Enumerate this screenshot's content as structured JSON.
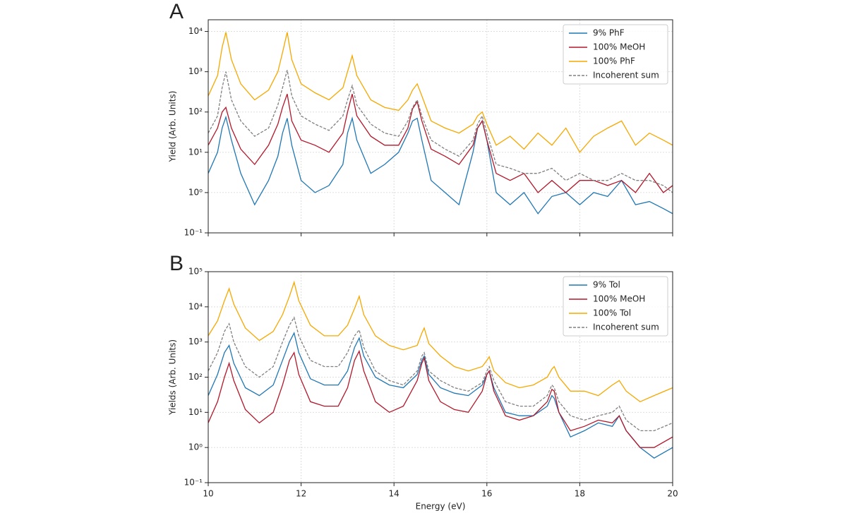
{
  "chart_data": [
    {
      "type": "line",
      "panel_label": "A",
      "ylabel": "Yield (Arb. Units)",
      "log_y": true,
      "grid": true,
      "legend": "upper right",
      "show_xtick_labels": false,
      "x": [
        10,
        10.2,
        10.3,
        10.38,
        10.5,
        10.7,
        11.0,
        11.3,
        11.5,
        11.6,
        11.7,
        11.8,
        12.0,
        12.3,
        12.6,
        12.9,
        13.0,
        13.1,
        13.2,
        13.5,
        13.8,
        14.1,
        14.3,
        14.4,
        14.5,
        14.6,
        14.8,
        15.1,
        15.4,
        15.7,
        15.8,
        15.9,
        16.0,
        16.2,
        16.5,
        16.8,
        17.1,
        17.4,
        17.7,
        18.0,
        18.3,
        18.6,
        18.9,
        19.2,
        19.5,
        19.8,
        20.0
      ],
      "xlim": [
        10,
        20
      ],
      "xticks": [
        10,
        12,
        14,
        16,
        18,
        20
      ],
      "ylim": [
        0.1,
        19500
      ],
      "yticks": [
        {
          "value": 0.1,
          "label": "10⁻¹"
        },
        {
          "value": 1,
          "label": "10⁰"
        },
        {
          "value": 10,
          "label": "10¹"
        },
        {
          "value": 100,
          "label": "10²"
        },
        {
          "value": 1000,
          "label": "10³"
        },
        {
          "value": 10000,
          "label": "10⁴"
        }
      ],
      "series": [
        {
          "name": "9% PhF",
          "color": "#1f77b4",
          "dashed": false,
          "values": [
            3,
            10,
            40,
            75,
            20,
            3,
            0.5,
            2,
            8,
            30,
            70,
            15,
            2,
            1,
            1.5,
            5,
            30,
            70,
            20,
            3,
            5,
            10,
            30,
            60,
            70,
            20,
            2,
            1,
            0.5,
            10,
            40,
            60,
            20,
            1,
            0.5,
            1,
            0.3,
            0.8,
            1,
            0.5,
            1,
            0.8,
            2,
            0.5,
            0.6,
            0.4,
            0.3
          ]
        },
        {
          "name": "100% MeOH",
          "color": "#b2182b",
          "dashed": false,
          "values": [
            15,
            40,
            100,
            130,
            40,
            12,
            5,
            15,
            50,
            130,
            280,
            60,
            20,
            15,
            10,
            30,
            100,
            280,
            80,
            25,
            15,
            15,
            40,
            120,
            180,
            60,
            12,
            8,
            5,
            15,
            40,
            60,
            20,
            3,
            2,
            3,
            1,
            2,
            1,
            2,
            2,
            1.5,
            2,
            1,
            3,
            1,
            1.5
          ]
        },
        {
          "name": "100% PhF",
          "color": "#f5a800",
          "dashed": false,
          "values": [
            250,
            800,
            4000,
            9500,
            2000,
            500,
            200,
            350,
            1000,
            3000,
            9500,
            2000,
            500,
            300,
            200,
            400,
            1000,
            2500,
            800,
            200,
            130,
            110,
            200,
            350,
            500,
            250,
            60,
            40,
            30,
            50,
            80,
            100,
            50,
            15,
            25,
            12,
            30,
            15,
            40,
            10,
            25,
            40,
            60,
            15,
            30,
            20,
            15
          ]
        },
        {
          "name": "Incoherent sum",
          "color": "#808080",
          "dashed": true,
          "values": [
            30,
            80,
            400,
            1000,
            200,
            60,
            25,
            40,
            150,
            400,
            1100,
            250,
            80,
            50,
            35,
            80,
            200,
            450,
            150,
            50,
            30,
            25,
            60,
            130,
            200,
            80,
            20,
            12,
            8,
            20,
            50,
            80,
            30,
            5,
            4,
            3,
            3,
            4,
            2,
            3,
            2,
            2,
            3,
            2,
            2,
            1.5,
            1
          ]
        }
      ]
    },
    {
      "type": "line",
      "panel_label": "B",
      "ylabel": "Yields (Arb. Units)",
      "xlabel": "Energy (eV)",
      "log_y": true,
      "grid": true,
      "legend": "upper right",
      "show_xtick_labels": true,
      "x": [
        10,
        10.2,
        10.35,
        10.45,
        10.55,
        10.8,
        11.1,
        11.4,
        11.6,
        11.75,
        11.85,
        11.95,
        12.2,
        12.5,
        12.8,
        13.0,
        13.15,
        13.25,
        13.35,
        13.6,
        13.9,
        14.2,
        14.5,
        14.6,
        14.65,
        14.75,
        15.0,
        15.3,
        15.6,
        15.9,
        16.0,
        16.05,
        16.15,
        16.4,
        16.7,
        17.0,
        17.3,
        17.4,
        17.45,
        17.55,
        17.8,
        18.1,
        18.4,
        18.7,
        18.85,
        19.0,
        19.3,
        19.6,
        20.0
      ],
      "xlim": [
        10,
        20
      ],
      "xticks": [
        10,
        12,
        14,
        16,
        18,
        20
      ],
      "ylim": [
        0.1,
        100000
      ],
      "yticks": [
        {
          "value": 0.1,
          "label": "10⁻¹"
        },
        {
          "value": 1,
          "label": "10⁰"
        },
        {
          "value": 10,
          "label": "10¹"
        },
        {
          "value": 100,
          "label": "10²"
        },
        {
          "value": 1000,
          "label": "10³"
        },
        {
          "value": 10000,
          "label": "10⁴"
        },
        {
          "value": 100000,
          "label": "10⁵"
        }
      ],
      "series": [
        {
          "name": "9% Tol",
          "color": "#1f77b4",
          "dashed": false,
          "values": [
            30,
            120,
            500,
            800,
            250,
            50,
            30,
            60,
            300,
            1000,
            1800,
            500,
            90,
            60,
            60,
            150,
            700,
            1300,
            400,
            100,
            60,
            50,
            120,
            300,
            400,
            120,
            50,
            35,
            30,
            60,
            120,
            150,
            50,
            10,
            8,
            8,
            15,
            30,
            25,
            10,
            2,
            3,
            5,
            4,
            8,
            3,
            1,
            0.5,
            1
          ]
        },
        {
          "name": "100% MeOH",
          "color": "#b2182b",
          "dashed": false,
          "values": [
            5,
            20,
            100,
            250,
            80,
            12,
            5,
            10,
            60,
            300,
            500,
            120,
            20,
            15,
            15,
            50,
            300,
            550,
            150,
            20,
            10,
            15,
            80,
            250,
            350,
            80,
            20,
            12,
            10,
            40,
            120,
            150,
            40,
            8,
            6,
            8,
            20,
            45,
            40,
            10,
            3,
            4,
            6,
            5,
            8,
            3,
            1,
            1,
            2
          ]
        },
        {
          "name": "100% Tol",
          "color": "#f5a800",
          "dashed": false,
          "values": [
            1500,
            4000,
            15000,
            33000,
            12000,
            2500,
            1100,
            2000,
            6000,
            20000,
            50000,
            15000,
            3000,
            1500,
            1500,
            3000,
            9000,
            20000,
            6000,
            1500,
            800,
            600,
            800,
            1800,
            2500,
            900,
            400,
            200,
            150,
            200,
            300,
            380,
            150,
            70,
            50,
            60,
            100,
            170,
            200,
            100,
            40,
            40,
            30,
            60,
            80,
            40,
            20,
            30,
            50
          ]
        },
        {
          "name": "Incoherent sum",
          "color": "#808080",
          "dashed": true,
          "values": [
            150,
            500,
            2000,
            3300,
            1000,
            200,
            100,
            200,
            1000,
            3000,
            5000,
            1500,
            300,
            200,
            200,
            500,
            1500,
            2200,
            700,
            150,
            80,
            60,
            150,
            400,
            500,
            150,
            80,
            50,
            40,
            70,
            150,
            200,
            80,
            20,
            15,
            15,
            30,
            60,
            50,
            20,
            8,
            6,
            8,
            10,
            15,
            6,
            3,
            3,
            5
          ]
        }
      ]
    }
  ]
}
